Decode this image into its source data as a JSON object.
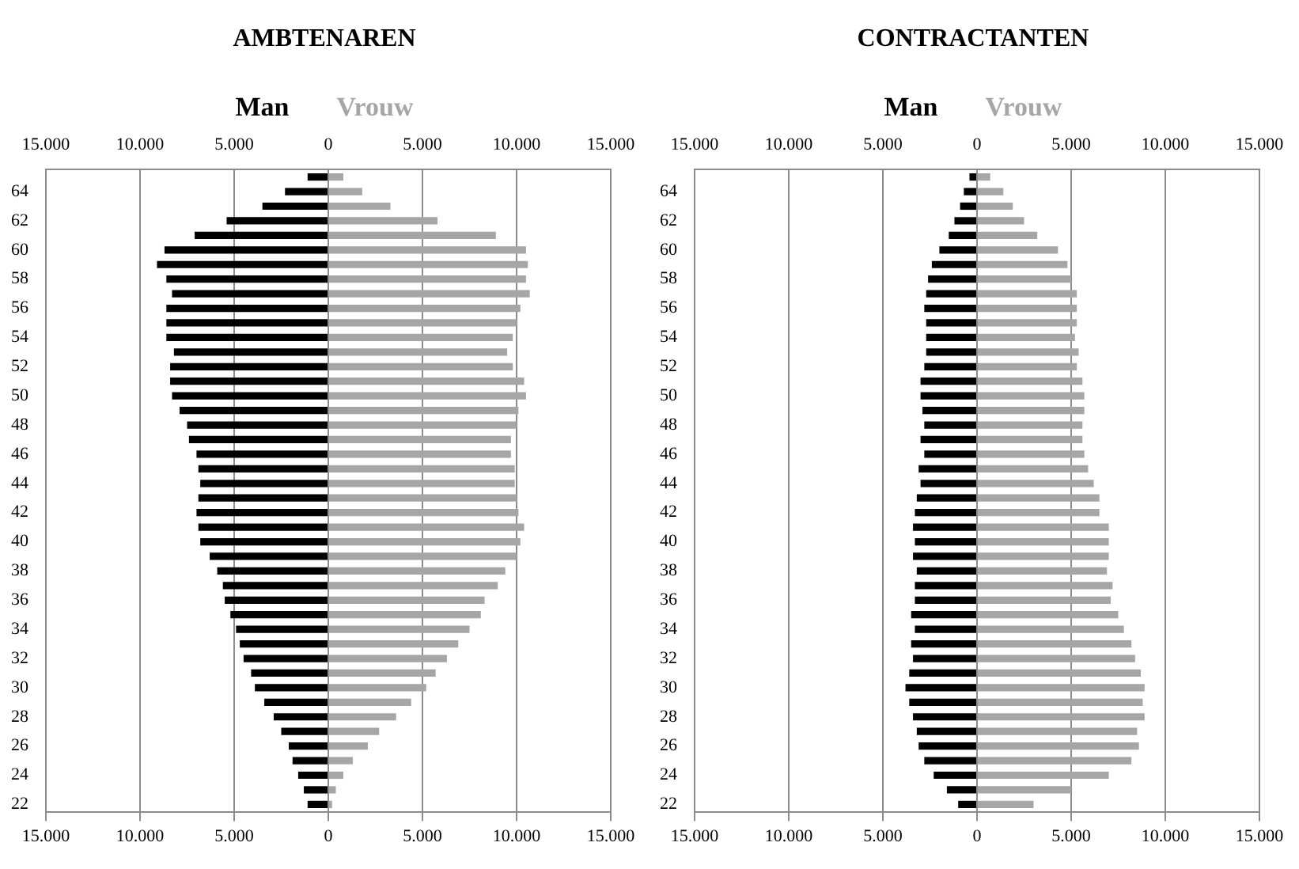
{
  "chart_data": [
    {
      "type": "bar",
      "orientation": "horizontal",
      "stacked": true,
      "title": "AMBTENAREN",
      "legend": "top",
      "grid": "x",
      "categories": [
        null,
        "64",
        null,
        "62",
        null,
        "60",
        null,
        "58",
        null,
        "56",
        null,
        "54",
        null,
        "52",
        null,
        "50",
        null,
        "48",
        null,
        "46",
        null,
        "44",
        null,
        "42",
        null,
        "40",
        null,
        "38",
        null,
        "36",
        null,
        "34",
        null,
        "32",
        null,
        "30",
        null,
        "28",
        null,
        "26",
        null,
        "24",
        null,
        "22"
      ],
      "series": [
        {
          "name": "Man",
          "color": "#000000",
          "values": [
            -1100,
            -2300,
            -3500,
            -5400,
            -7100,
            -8700,
            -9100,
            -8600,
            -8300,
            -8600,
            -8600,
            -8600,
            -8200,
            -8400,
            -8400,
            -8300,
            -7900,
            -7500,
            -7400,
            -7000,
            -6900,
            -6800,
            -6900,
            -7000,
            -6900,
            -6800,
            -6300,
            -5900,
            -5600,
            -5500,
            -5200,
            -4900,
            -4700,
            -4500,
            -4100,
            -3900,
            -3400,
            -2900,
            -2500,
            -2100,
            -1900,
            -1600,
            -1300,
            -1100
          ]
        },
        {
          "name": "Vrouw",
          "color": "#a6a6a6",
          "values": [
            800,
            1800,
            3300,
            5800,
            8900,
            10500,
            10600,
            10500,
            10700,
            10200,
            10000,
            9800,
            9500,
            9800,
            10400,
            10500,
            10100,
            10000,
            9700,
            9700,
            9900,
            9900,
            10000,
            10100,
            10400,
            10200,
            10000,
            9400,
            9000,
            8300,
            8100,
            7500,
            6900,
            6300,
            5700,
            5200,
            4400,
            3600,
            2700,
            2100,
            1300,
            800,
            400,
            200
          ]
        }
      ],
      "xlim": [
        -15000,
        15000
      ],
      "xticks": [
        {
          "value": -15000,
          "label": "15.000"
        },
        {
          "value": -10000,
          "label": "10.000"
        },
        {
          "value": -5000,
          "label": "5.000"
        },
        0,
        {
          "value": 5000,
          "label": "5.000"
        },
        {
          "value": 10000,
          "label": "10.000"
        },
        {
          "value": 15000,
          "label": "15.000"
        }
      ],
      "x2lim": [
        -15000,
        15000
      ],
      "x2ticks": [
        {
          "value": -15000,
          "label": "15.000"
        },
        {
          "value": -10000,
          "label": "10.000"
        },
        {
          "value": -5000,
          "label": "5.000"
        },
        0,
        {
          "value": 5000,
          "label": "5.000"
        },
        {
          "value": 10000,
          "label": "10.000"
        },
        {
          "value": 15000,
          "label": "15.000"
        }
      ]
    },
    {
      "type": "bar",
      "orientation": "horizontal",
      "stacked": true,
      "title": "CONTRACTANTEN",
      "legend": "top",
      "grid": "x",
      "categories": [
        null,
        "64",
        null,
        "62",
        null,
        "60",
        null,
        "58",
        null,
        "56",
        null,
        "54",
        null,
        "52",
        null,
        "50",
        null,
        "48",
        null,
        "46",
        null,
        "44",
        null,
        "42",
        null,
        "40",
        null,
        "38",
        null,
        "36",
        null,
        "34",
        null,
        "32",
        null,
        "30",
        null,
        "28",
        null,
        "26",
        null,
        "24",
        null,
        "22"
      ],
      "series": [
        {
          "name": "Man",
          "color": "#000000",
          "values": [
            -400,
            -700,
            -900,
            -1200,
            -1500,
            -2000,
            -2400,
            -2600,
            -2700,
            -2800,
            -2700,
            -2700,
            -2700,
            -2800,
            -3000,
            -3000,
            -2900,
            -2800,
            -3000,
            -2800,
            -3100,
            -3000,
            -3200,
            -3300,
            -3400,
            -3300,
            -3400,
            -3200,
            -3300,
            -3300,
            -3500,
            -3300,
            -3500,
            -3400,
            -3600,
            -3800,
            -3600,
            -3400,
            -3200,
            -3100,
            -2800,
            -2300,
            -1600,
            -1000
          ]
        },
        {
          "name": "Vrouw",
          "color": "#a6a6a6",
          "values": [
            700,
            1400,
            1900,
            2500,
            3200,
            4300,
            4800,
            5000,
            5300,
            5300,
            5300,
            5200,
            5400,
            5300,
            5600,
            5700,
            5700,
            5600,
            5600,
            5700,
            5900,
            6200,
            6500,
            6500,
            7000,
            7000,
            7000,
            6900,
            7200,
            7100,
            7500,
            7800,
            8200,
            8400,
            8700,
            8900,
            8800,
            8900,
            8500,
            8600,
            8200,
            7000,
            5000,
            3000
          ]
        }
      ],
      "xlim": [
        -15000,
        15000
      ],
      "xticks": [
        {
          "value": -15000,
          "label": "15.000"
        },
        {
          "value": -10000,
          "label": "10.000"
        },
        {
          "value": -5000,
          "label": "5.000"
        },
        0,
        {
          "value": 5000,
          "label": "5.000"
        },
        {
          "value": 10000,
          "label": "10.000"
        },
        {
          "value": 15000,
          "label": "15.000"
        }
      ],
      "x2lim": [
        -15000,
        15000
      ],
      "x2ticks": [
        {
          "value": -15000,
          "label": "15.000"
        },
        {
          "value": -10000,
          "label": "10.000"
        },
        {
          "value": -5000,
          "label": "5.000"
        },
        0,
        {
          "value": 5000,
          "label": "5.000"
        },
        {
          "value": 10000,
          "label": "10.000"
        },
        {
          "value": 15000,
          "label": "15.000"
        }
      ]
    }
  ]
}
